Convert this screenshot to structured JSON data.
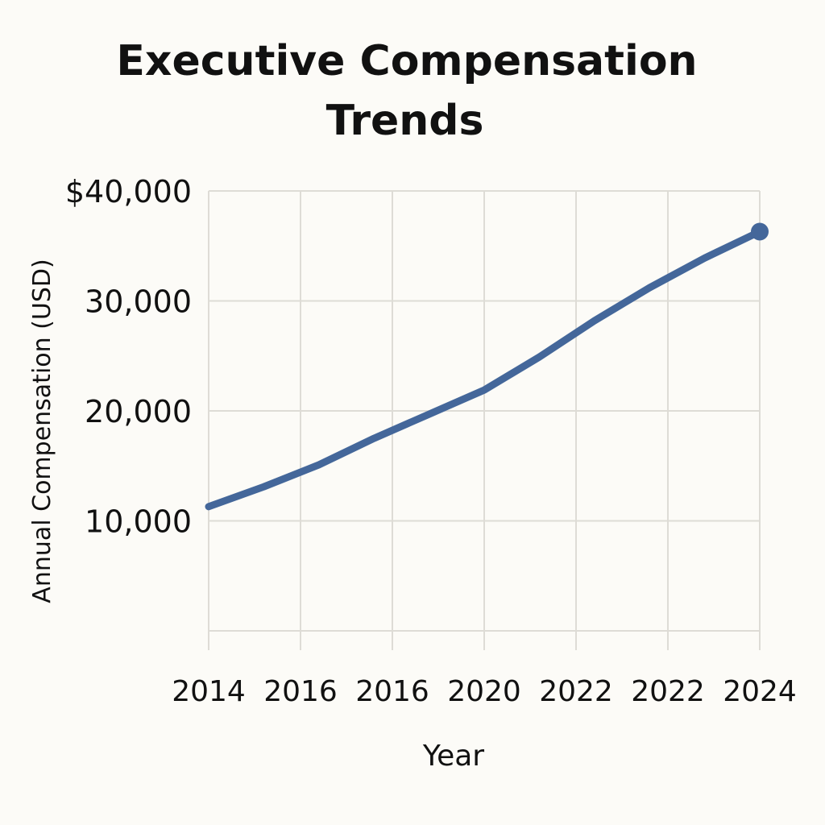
{
  "chart_data": {
    "type": "line",
    "title_line_1": "Executive Compensation",
    "title_line_2": "Trends",
    "xlabel": "Year",
    "ylabel": "Annual Compensation (USD)",
    "x_tick_labels": [
      "2014",
      "2016",
      "2016",
      "2020",
      "2022",
      "2022",
      "2024"
    ],
    "y_tick_labels": [
      "10,000",
      "20,000",
      "30,000",
      "$40,000"
    ],
    "y_tick_values": [
      10000,
      20000,
      30000,
      40000
    ],
    "xlim": [
      2014,
      2024
    ],
    "ylim": [
      0,
      40000
    ],
    "grid": true,
    "legend": "none",
    "line_color": "#44679a",
    "series": [
      {
        "x": [
          2014,
          2015,
          2016,
          2017,
          2018,
          2019,
          2020,
          2021,
          2022,
          2023,
          2024
        ],
        "values": [
          11300,
          13100,
          15100,
          17500,
          19700,
          21900,
          24900,
          28200,
          31200,
          33900,
          36300
        ],
        "end_marker": true
      }
    ]
  }
}
